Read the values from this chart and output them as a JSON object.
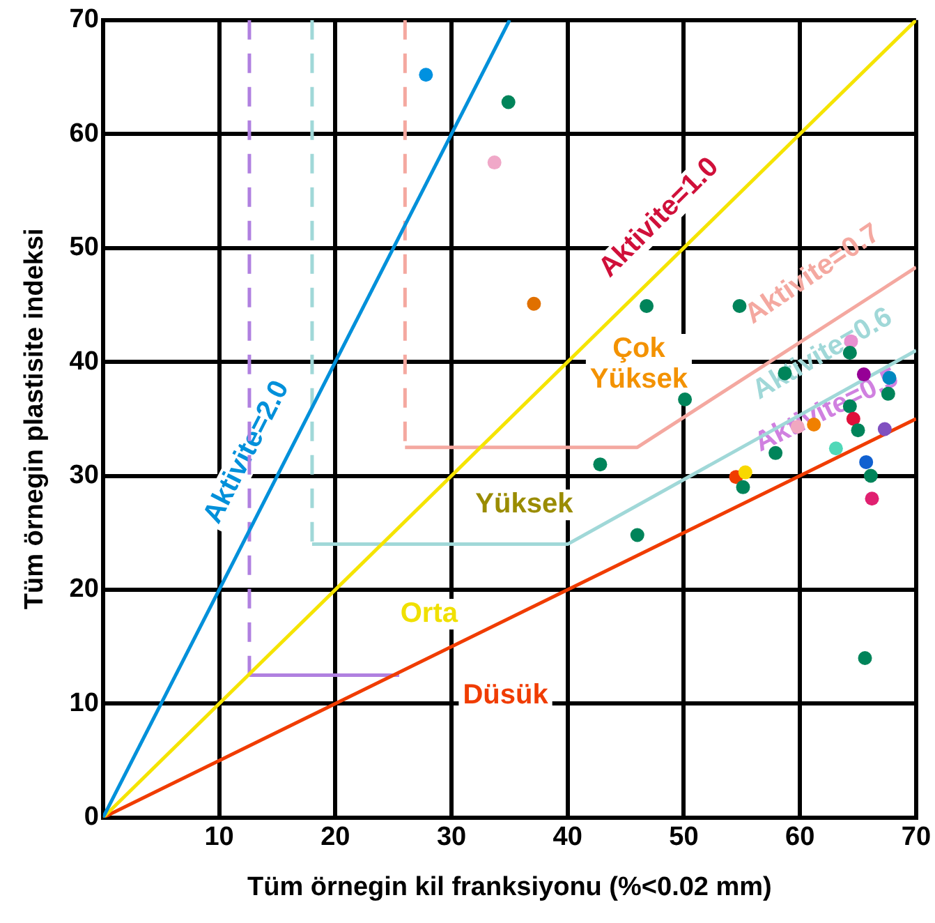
{
  "chart_data": {
    "type": "scatter",
    "xlabel": "Tüm örnegin kil franksiyonu (%<0.02 mm)",
    "ylabel": "Tüm örnegin plastisite indeksi",
    "xlim": [
      0,
      70
    ],
    "ylim": [
      0,
      70
    ],
    "xticks": [
      {
        "value": 0,
        "label": null
      },
      10,
      20,
      30,
      40,
      50,
      60,
      70
    ],
    "yticks": [
      0,
      10,
      20,
      30,
      40,
      50,
      60,
      70
    ],
    "grid": true,
    "legend": false,
    "marker": "circle",
    "series": [
      {
        "type": "line",
        "color": "#0090da",
        "x": [
          0,
          35
        ],
        "values": [
          0,
          70
        ],
        "marker": "none"
      },
      {
        "type": "line",
        "color": "#f5e400",
        "x": [
          0,
          70
        ],
        "values": [
          0,
          70
        ],
        "marker": "none"
      },
      {
        "type": "line",
        "color": "#f03c00",
        "x": [
          0,
          70
        ],
        "values": [
          0,
          35
        ],
        "marker": "none"
      },
      {
        "type": "line",
        "color": "#f4a8a0",
        "x": [
          26,
          26
        ],
        "values": [
          70,
          32.5
        ],
        "marker": "none",
        "line_style": "dashed"
      },
      {
        "type": "line",
        "color": "#f4a8a0",
        "x": [
          26,
          46,
          70
        ],
        "values": [
          32.5,
          32.5,
          48.3
        ],
        "marker": "none"
      },
      {
        "type": "line",
        "color": "#a0d8d8",
        "x": [
          18,
          18
        ],
        "values": [
          70,
          24
        ],
        "marker": "none",
        "line_style": "dashed"
      },
      {
        "type": "line",
        "color": "#a0d8d8",
        "x": [
          18,
          40,
          70
        ],
        "values": [
          24,
          24,
          41
        ],
        "marker": "none"
      },
      {
        "type": "line",
        "color": "#b080e0",
        "x": [
          12.6,
          12.6
        ],
        "values": [
          70,
          12.5
        ],
        "marker": "none",
        "line_style": "dashed"
      },
      {
        "type": "line",
        "color": "#b080e0",
        "x": [
          12.6,
          25.5
        ],
        "values": [
          12.5,
          12.5
        ],
        "marker": "none"
      },
      {
        "type": "scatter",
        "x": [
          27.8,
          34.9,
          33.7,
          37.1,
          46.8,
          54.8,
          50.1,
          42.8,
          46.0,
          64.4,
          64.3,
          58.7,
          65.5,
          67.7,
          67.6,
          64.3,
          64.6,
          59.8,
          61.2,
          65.0,
          67.3,
          57.9,
          63.1,
          65.7,
          54.5,
          55.3,
          55.1,
          66.1,
          66.2,
          65.6
        ],
        "values": [
          65.2,
          62.8,
          57.5,
          45.1,
          44.9,
          44.9,
          36.7,
          31.0,
          24.8,
          41.8,
          40.8,
          39.0,
          38.9,
          38.6,
          37.2,
          36.1,
          35.0,
          34.3,
          34.5,
          34.0,
          34.1,
          32.0,
          32.4,
          31.2,
          29.9,
          30.3,
          29.0,
          30.0,
          28.0,
          14.0
        ],
        "colors": [
          "#0091e0",
          "#00845a",
          "#f0a8c8",
          "#e07000",
          "#00845a",
          "#00845a",
          "#00845a",
          "#00845a",
          "#00845a",
          "#e890d0",
          "#00845a",
          "#00845a",
          "#960096",
          "#0088c0",
          "#00845a",
          "#00845a",
          "#e0103a",
          "#f0a8c0",
          "#f08000",
          "#00845a",
          "#8050c0",
          "#00845a",
          "#50d8b8",
          "#1060d0",
          "#f03c00",
          "#f8d800",
          "#00845a",
          "#00845a",
          "#e02070",
          "#00845a"
        ]
      }
    ],
    "annotations": [
      "Aktivite=2.0",
      "Aktivite=1.0",
      "Aktivite=0.7",
      "Aktivite=0.6",
      "Aktivite=0.5",
      "Çok Yüksek",
      "Yüksek",
      "Orta",
      "Düsük"
    ]
  }
}
